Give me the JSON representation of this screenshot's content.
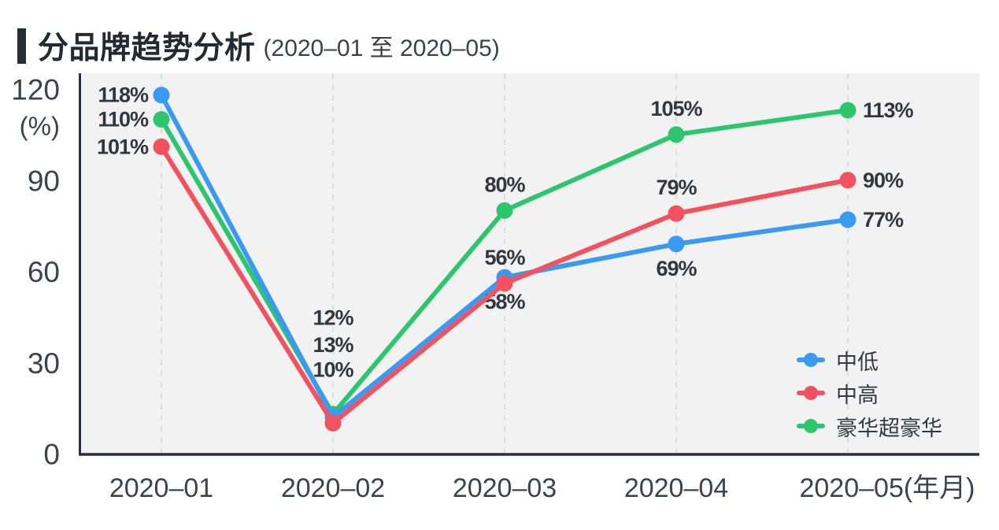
{
  "chart_data": {
    "type": "line",
    "title": "分品牌趋势分析",
    "subtitle": "(2020–01 至 2020–05)",
    "categories": [
      "2020–01",
      "2020–02",
      "2020–03",
      "2020–04",
      "2020–05(年月)"
    ],
    "series": [
      {
        "name": "中低",
        "color": "#3a99f0",
        "values": [
          118,
          12,
          58,
          69,
          77
        ],
        "label_positions": [
          "left",
          "stack",
          "bottom",
          "bottom",
          "right"
        ]
      },
      {
        "name": "中高",
        "color": "#f2525f",
        "values": [
          101,
          10,
          56,
          79,
          90
        ],
        "label_positions": [
          "left",
          "stack",
          "top",
          "top",
          "right"
        ]
      },
      {
        "name": "豪华超豪华",
        "color": "#2dc56e",
        "values": [
          110,
          13,
          80,
          105,
          113
        ],
        "label_positions": [
          "left",
          "stack",
          "top",
          "top",
          "right"
        ]
      }
    ],
    "unit": "%",
    "ylabel": "(%)",
    "yticks": [
      120,
      90,
      60,
      30,
      0
    ],
    "ylim": [
      0,
      120
    ],
    "grid": "vertical-dashed",
    "legend_position": "inside-right-bottom",
    "plot_bg": "#f2f2f3",
    "grid_color": "#dcdddf",
    "axis_color": "#2b3139"
  }
}
